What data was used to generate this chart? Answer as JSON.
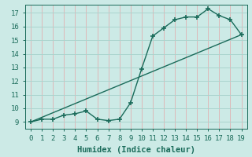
{
  "line1_x": [
    0,
    1,
    2,
    3,
    4,
    5,
    6,
    7,
    8,
    9,
    10,
    11,
    12,
    13,
    14,
    15,
    16,
    17,
    18,
    19
  ],
  "line1_y": [
    9.0,
    9.2,
    9.2,
    9.5,
    9.6,
    9.8,
    9.2,
    9.1,
    9.2,
    10.4,
    12.9,
    15.3,
    15.9,
    16.5,
    16.7,
    16.7,
    17.3,
    16.8,
    16.5,
    15.4
  ],
  "line2_x": [
    0,
    19
  ],
  "line2_y": [
    9.0,
    15.4
  ],
  "color": "#1a6b5a",
  "bg_color": "#cceae6",
  "grid_h_color": "#aad4ce",
  "grid_v_color": "#ddb8b8",
  "xlabel": "Humidex (Indice chaleur)",
  "xlim": [
    -0.5,
    19.5
  ],
  "ylim": [
    8.5,
    17.6
  ],
  "yticks": [
    9,
    10,
    11,
    12,
    13,
    14,
    15,
    16,
    17
  ],
  "xticks": [
    0,
    1,
    2,
    3,
    4,
    5,
    6,
    7,
    8,
    9,
    10,
    11,
    12,
    13,
    14,
    15,
    16,
    17,
    18,
    19
  ],
  "marker": "+",
  "markersize": 4,
  "linewidth": 1.0,
  "xlabel_fontsize": 7.5,
  "tick_fontsize": 6.5
}
